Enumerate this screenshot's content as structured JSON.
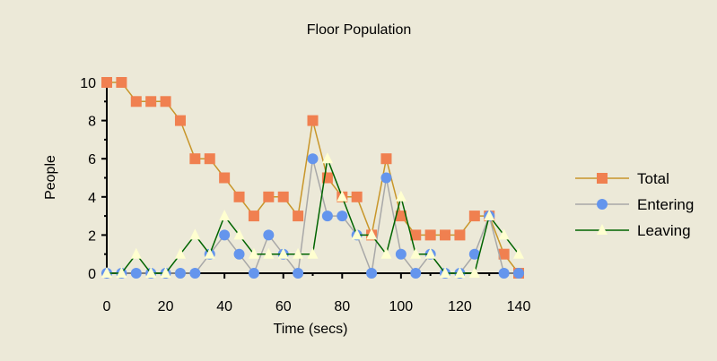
{
  "chart_data": {
    "type": "line",
    "title": "Floor Population",
    "xlabel": "Time (secs)",
    "ylabel": "People",
    "xlim": [
      0,
      140
    ],
    "ylim": [
      0,
      10
    ],
    "x_ticks": [
      0,
      20,
      40,
      60,
      80,
      100,
      120,
      140
    ],
    "y_ticks": [
      0,
      2,
      4,
      6,
      8,
      10
    ],
    "grid": false,
    "legend_position": "right",
    "x": [
      0,
      5,
      10,
      15,
      20,
      25,
      30,
      35,
      40,
      45,
      50,
      55,
      60,
      65,
      70,
      75,
      80,
      85,
      90,
      95,
      100,
      105,
      110,
      115,
      120,
      125,
      130,
      135,
      140
    ],
    "series": [
      {
        "name": "Total",
        "marker": "square",
        "line_color": "#c8962a",
        "marker_color": "#f08050",
        "values": [
          10,
          10,
          9,
          9,
          9,
          8,
          6,
          6,
          5,
          4,
          3,
          4,
          4,
          3,
          8,
          5,
          4,
          4,
          2,
          6,
          3,
          2,
          2,
          2,
          2,
          3,
          3,
          1,
          0
        ]
      },
      {
        "name": "Entering",
        "marker": "circle",
        "line_color": "#a8a8a8",
        "marker_color": "#6495ed",
        "values": [
          0,
          0,
          0,
          0,
          0,
          0,
          0,
          1,
          2,
          1,
          0,
          2,
          1,
          0,
          6,
          3,
          3,
          2,
          0,
          5,
          1,
          0,
          1,
          0,
          0,
          1,
          3,
          0,
          0
        ]
      },
      {
        "name": "Leaving",
        "marker": "triangle",
        "line_color": "#006400",
        "marker_color": "#ffffd0",
        "values": [
          0,
          0,
          1,
          0,
          0,
          1,
          2,
          1,
          3,
          2,
          1,
          1,
          1,
          1,
          1,
          6,
          4,
          2,
          2,
          1,
          4,
          1,
          1,
          0,
          0,
          0,
          3,
          2,
          1
        ]
      }
    ]
  }
}
